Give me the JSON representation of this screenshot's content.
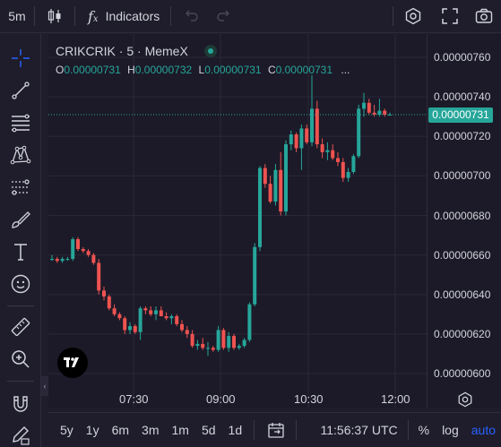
{
  "toolbar": {
    "interval": "5m",
    "indicators_label": "Indicators"
  },
  "legend": {
    "symbol": "CRIKCRIK",
    "interval": "5",
    "exchange": "MemeX",
    "title": "CRIKCRIK · 5 · MemeX",
    "o_label": "O",
    "o_value": "0.00000731",
    "h_label": "H",
    "h_value": "0.00000732",
    "l_label": "L",
    "l_value": "0.00000731",
    "c_label": "C",
    "c_value": "0.00000731",
    "more": "..."
  },
  "current_price_label": "0.00000731",
  "colors": {
    "up": "#26a69a",
    "down": "#ef5350",
    "background": "#1c1a28",
    "current_line": "#26a69a"
  },
  "bottombar": {
    "ranges": [
      "5y",
      "1y",
      "6m",
      "3m",
      "1m",
      "5d",
      "1d"
    ],
    "time": "11:56:37 UTC",
    "percent": "%",
    "log": "log",
    "auto": "auto"
  },
  "chart_data": {
    "type": "candlestick",
    "x_ticks": [
      "07:30",
      "09:00",
      "10:30",
      "12:00"
    ],
    "y_ticks": [
      "0.00000760",
      "0.00000740",
      "0.00000720",
      "0.00000700",
      "0.00000680",
      "0.00000660",
      "0.00000640",
      "0.00000620",
      "0.00000600"
    ],
    "ylim": [
      6e-06,
      7.65e-06
    ],
    "current_price": 7.31e-06,
    "candles": [
      {
        "o": 658,
        "h": 660,
        "l": 657,
        "c": 658
      },
      {
        "o": 658,
        "h": 659,
        "l": 656,
        "c": 657
      },
      {
        "o": 657,
        "h": 659,
        "l": 656,
        "c": 658
      },
      {
        "o": 658,
        "h": 659,
        "l": 657,
        "c": 658
      },
      {
        "o": 658,
        "h": 669,
        "l": 657,
        "c": 668
      },
      {
        "o": 668,
        "h": 669,
        "l": 662,
        "c": 663
      },
      {
        "o": 663,
        "h": 664,
        "l": 661,
        "c": 662
      },
      {
        "o": 662,
        "h": 663,
        "l": 659,
        "c": 660
      },
      {
        "o": 660,
        "h": 661,
        "l": 655,
        "c": 656
      },
      {
        "o": 656,
        "h": 658,
        "l": 640,
        "c": 642
      },
      {
        "o": 642,
        "h": 644,
        "l": 637,
        "c": 639
      },
      {
        "o": 639,
        "h": 640,
        "l": 632,
        "c": 633
      },
      {
        "o": 633,
        "h": 635,
        "l": 629,
        "c": 630
      },
      {
        "o": 630,
        "h": 631,
        "l": 627,
        "c": 628
      },
      {
        "o": 628,
        "h": 629,
        "l": 620,
        "c": 622
      },
      {
        "o": 622,
        "h": 626,
        "l": 620,
        "c": 624
      },
      {
        "o": 624,
        "h": 625,
        "l": 620,
        "c": 621
      },
      {
        "o": 621,
        "h": 634,
        "l": 617,
        "c": 633
      },
      {
        "o": 633,
        "h": 634,
        "l": 630,
        "c": 632
      },
      {
        "o": 632,
        "h": 634,
        "l": 629,
        "c": 630
      },
      {
        "o": 630,
        "h": 634,
        "l": 627,
        "c": 632
      },
      {
        "o": 632,
        "h": 634,
        "l": 629,
        "c": 629
      },
      {
        "o": 629,
        "h": 631,
        "l": 627,
        "c": 628
      },
      {
        "o": 628,
        "h": 630,
        "l": 625,
        "c": 629
      },
      {
        "o": 629,
        "h": 630,
        "l": 624,
        "c": 625
      },
      {
        "o": 625,
        "h": 627,
        "l": 621,
        "c": 622
      },
      {
        "o": 622,
        "h": 624,
        "l": 618,
        "c": 620
      },
      {
        "o": 620,
        "h": 622,
        "l": 613,
        "c": 614
      },
      {
        "o": 614,
        "h": 617,
        "l": 612,
        "c": 615
      },
      {
        "o": 615,
        "h": 618,
        "l": 612,
        "c": 613
      },
      {
        "o": 613,
        "h": 616,
        "l": 609,
        "c": 613
      },
      {
        "o": 613,
        "h": 614,
        "l": 611,
        "c": 612
      },
      {
        "o": 612,
        "h": 624,
        "l": 611,
        "c": 622
      },
      {
        "o": 622,
        "h": 623,
        "l": 612,
        "c": 613
      },
      {
        "o": 613,
        "h": 621,
        "l": 611,
        "c": 619
      },
      {
        "o": 619,
        "h": 620,
        "l": 612,
        "c": 613
      },
      {
        "o": 613,
        "h": 615,
        "l": 612,
        "c": 614
      },
      {
        "o": 614,
        "h": 618,
        "l": 613,
        "c": 617
      },
      {
        "o": 617,
        "h": 636,
        "l": 616,
        "c": 635
      },
      {
        "o": 635,
        "h": 666,
        "l": 634,
        "c": 664
      },
      {
        "o": 664,
        "h": 705,
        "l": 662,
        "c": 704
      },
      {
        "o": 704,
        "h": 706,
        "l": 694,
        "c": 696
      },
      {
        "o": 696,
        "h": 700,
        "l": 686,
        "c": 687
      },
      {
        "o": 687,
        "h": 706,
        "l": 685,
        "c": 703
      },
      {
        "o": 703,
        "h": 712,
        "l": 680,
        "c": 682
      },
      {
        "o": 682,
        "h": 718,
        "l": 680,
        "c": 716
      },
      {
        "o": 716,
        "h": 723,
        "l": 713,
        "c": 721
      },
      {
        "o": 721,
        "h": 722,
        "l": 712,
        "c": 714
      },
      {
        "o": 714,
        "h": 726,
        "l": 703,
        "c": 724
      },
      {
        "o": 724,
        "h": 726,
        "l": 716,
        "c": 717
      },
      {
        "o": 717,
        "h": 751,
        "l": 715,
        "c": 734
      },
      {
        "o": 734,
        "h": 738,
        "l": 714,
        "c": 716
      },
      {
        "o": 716,
        "h": 719,
        "l": 709,
        "c": 712
      },
      {
        "o": 712,
        "h": 717,
        "l": 708,
        "c": 713
      },
      {
        "o": 713,
        "h": 716,
        "l": 708,
        "c": 709
      },
      {
        "o": 709,
        "h": 712,
        "l": 705,
        "c": 707
      },
      {
        "o": 707,
        "h": 709,
        "l": 697,
        "c": 699
      },
      {
        "o": 699,
        "h": 704,
        "l": 697,
        "c": 702
      },
      {
        "o": 702,
        "h": 711,
        "l": 701,
        "c": 710
      },
      {
        "o": 710,
        "h": 736,
        "l": 709,
        "c": 734
      },
      {
        "o": 734,
        "h": 742,
        "l": 730,
        "c": 737
      },
      {
        "o": 737,
        "h": 739,
        "l": 731,
        "c": 732
      },
      {
        "o": 732,
        "h": 736,
        "l": 730,
        "c": 731
      },
      {
        "o": 731,
        "h": 739,
        "l": 730,
        "c": 733
      },
      {
        "o": 733,
        "h": 734,
        "l": 730,
        "c": 731
      },
      {
        "o": 731,
        "h": 732,
        "l": 731,
        "c": 731
      }
    ]
  }
}
